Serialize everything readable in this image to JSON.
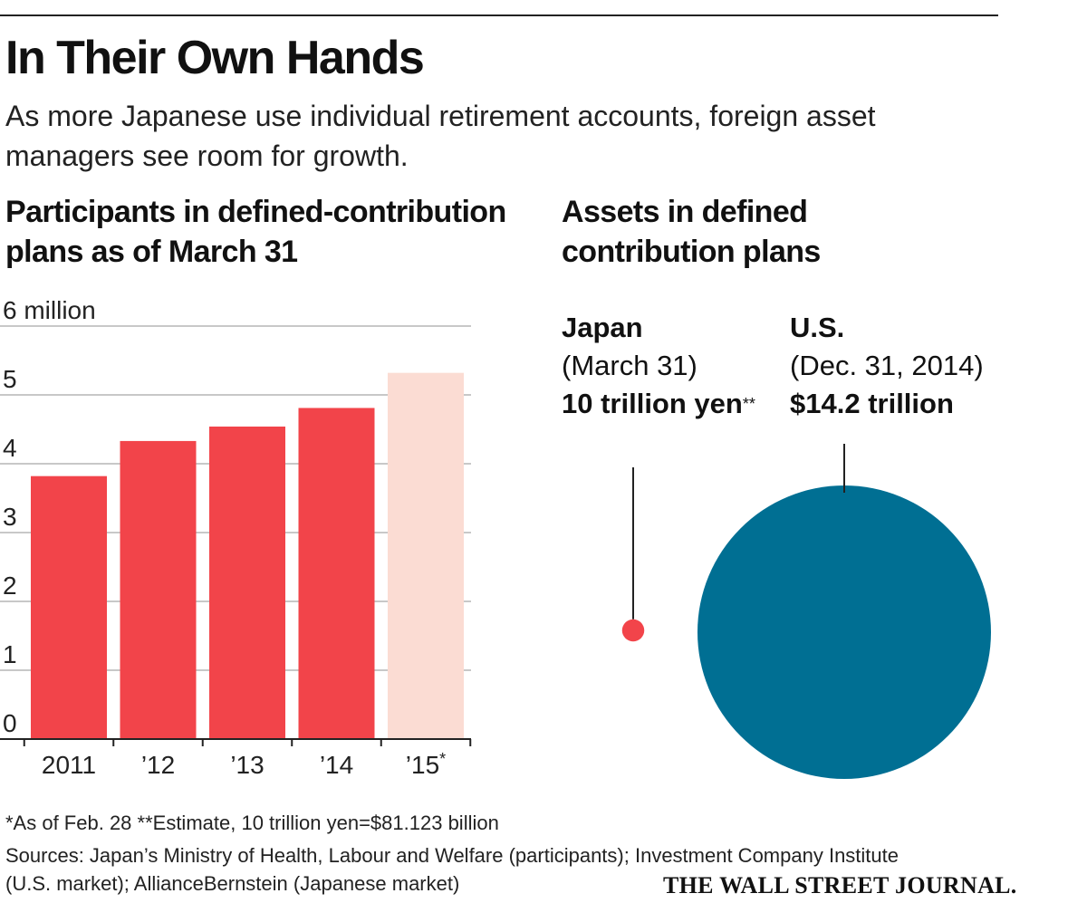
{
  "header": {
    "title": "In Their Own Hands",
    "subtitle": "As more Japanese use individual retirement accounts, foreign asset managers see room for growth."
  },
  "left_panel": {
    "title": "Participants in defined-contribution plans as of March 31"
  },
  "right_panel": {
    "title": "Assets in defined contribution plans",
    "japan": {
      "name": "Japan",
      "date": "(March 31)",
      "amount": "10 trillion yen",
      "amount_mark": "**"
    },
    "us": {
      "name": "U.S.",
      "date": "(Dec. 31, 2014)",
      "amount": "$14.2 trillion"
    }
  },
  "footer": {
    "footnote": "*As of Feb. 28  **Estimate, 10 trillion yen=$81.123 billion",
    "sources": "Sources: Japan’s Ministry of Health, Labour and Welfare (participants); Investment Company Institute (U.S. market); AllianceBernstein (Japanese market)",
    "logo": "THE WALL STREET JOURNAL."
  },
  "chart_data": [
    {
      "type": "bar",
      "title": "Participants in defined-contribution plans as of March 31",
      "categories": [
        "2011",
        "’12",
        "’13",
        "’14",
        "’15*"
      ],
      "values": [
        3.82,
        4.33,
        4.54,
        4.81,
        5.32
      ],
      "ylim": [
        0,
        6
      ],
      "yticks": [
        0,
        1,
        2,
        3,
        4,
        5,
        6
      ],
      "ytick_labels": [
        "0",
        "1",
        "2",
        "3",
        "4",
        "5",
        "6 million"
      ],
      "grid": true,
      "colors": [
        "#f2444a",
        "#f2444a",
        "#f2444a",
        "#f2444a",
        "#fbdcd3"
      ]
    },
    {
      "type": "bubble",
      "title": "Assets in defined contribution plans",
      "categories": [
        "Japan",
        "U.S."
      ],
      "values_usd_billion": [
        81.123,
        14200
      ],
      "colors": [
        "#f2444a",
        "#006f93"
      ]
    }
  ]
}
